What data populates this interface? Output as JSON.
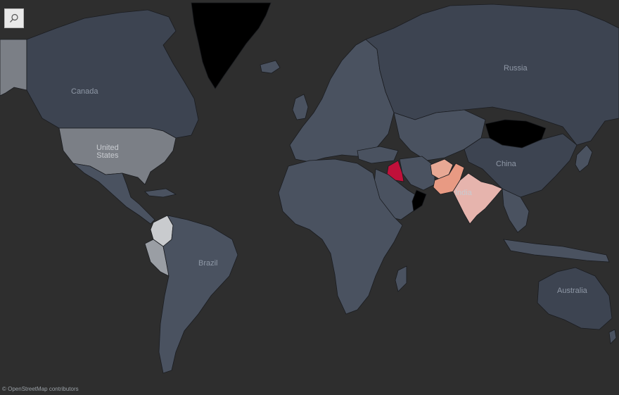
{
  "map": {
    "attribution": "© OpenStreetMap contributors",
    "search_icon": "magnifier-icon",
    "colors": {
      "ocean": "#2e2e2e",
      "land_default": "#4a5260",
      "land_dark": "#3d4451",
      "greenland": "#000000",
      "usa": "#7b7f86",
      "alaska": "#7b7f86",
      "mongolia": "#000000",
      "iraq": "#c0103a",
      "pakistan": "#e89a83",
      "afghanistan": "#e8a894",
      "india": "#e6b4ad",
      "colombia": "#c9cbce",
      "peru": "#9a9ea4",
      "oman": "#000000"
    },
    "labels": {
      "russia": "Russia",
      "canada": "Canada",
      "united_states_line1": "United",
      "united_states_line2": "States",
      "china": "China",
      "india": "India",
      "brazil": "Brazil",
      "australia": "Australia"
    }
  }
}
